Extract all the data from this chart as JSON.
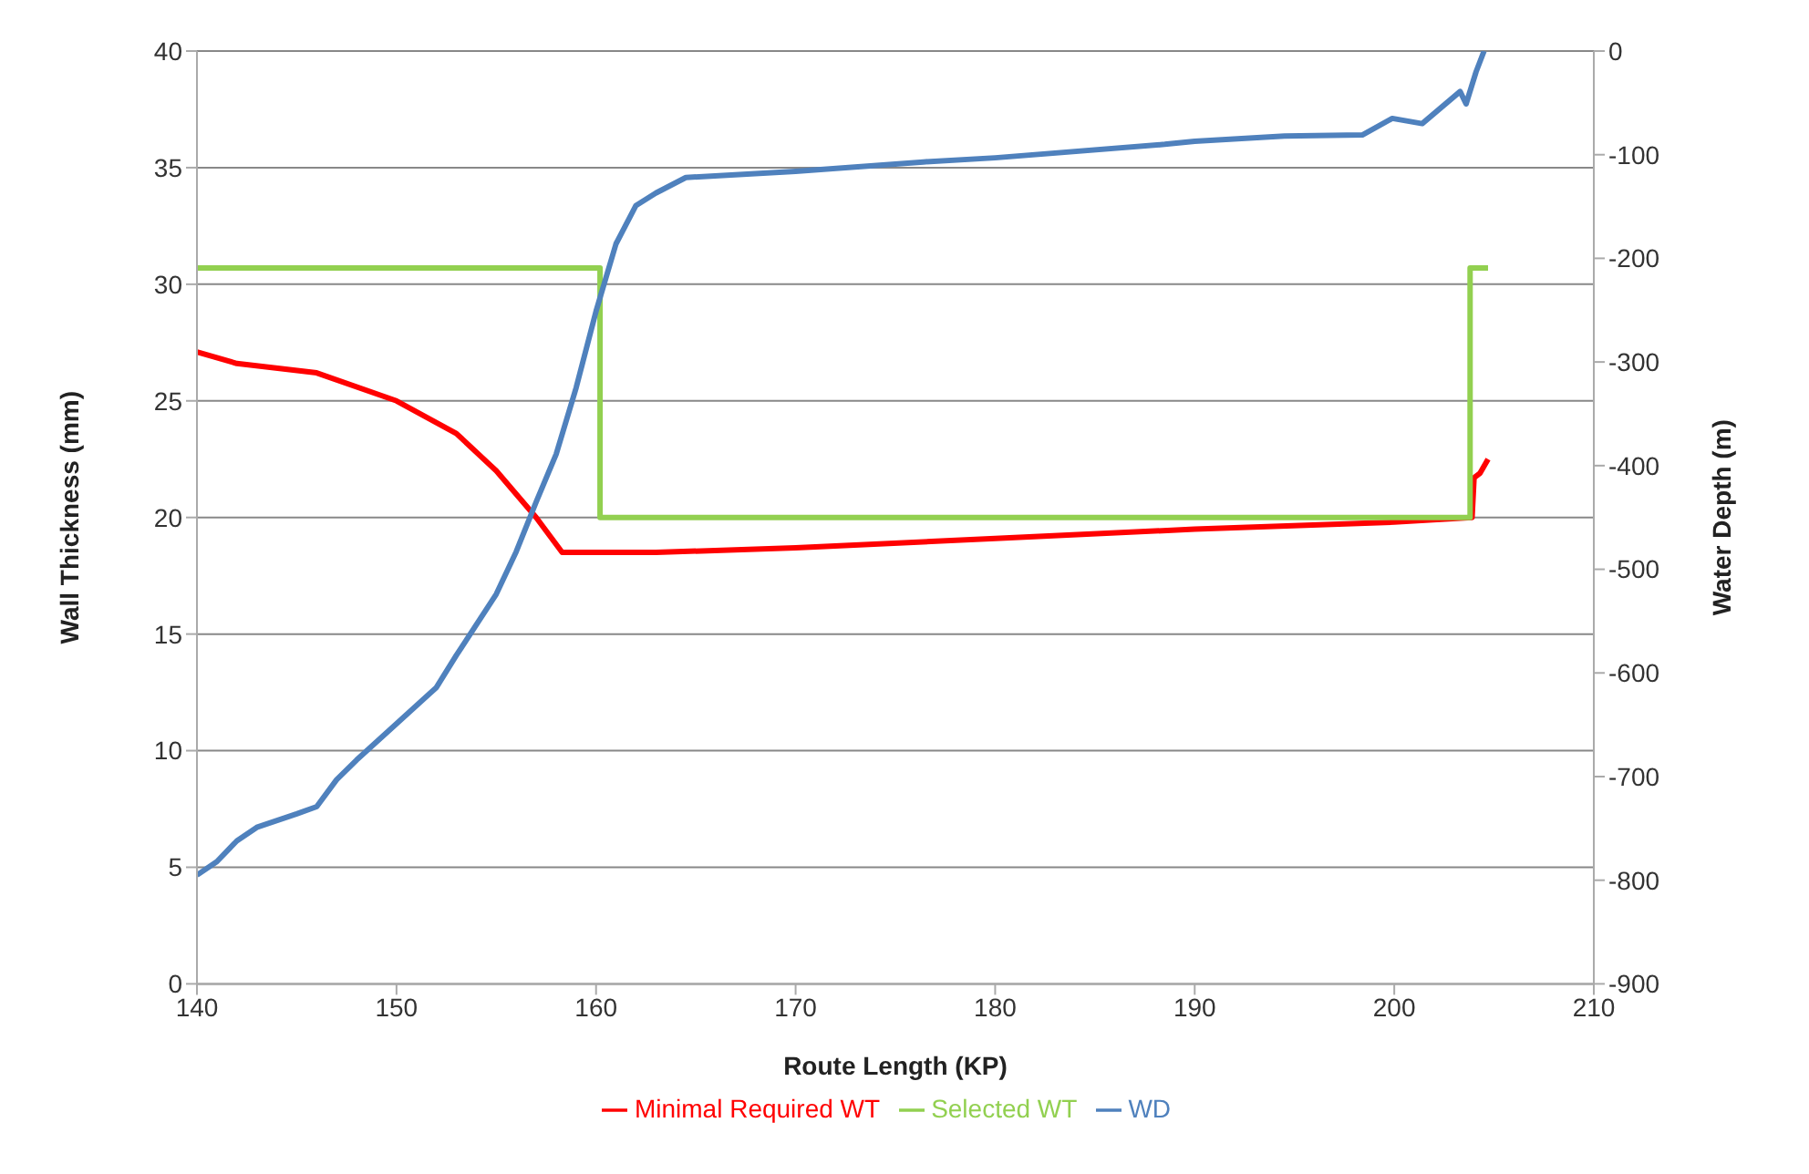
{
  "chart_data": {
    "type": "line",
    "xlabel": "Route Length (KP)",
    "ylabel": "Wall Thickness (mm)",
    "y2label": "Water Depth (m)",
    "xlim": [
      140,
      210
    ],
    "xticks": [
      140,
      150,
      160,
      170,
      180,
      190,
      200,
      210
    ],
    "ylim": [
      0,
      40
    ],
    "yticks": [
      0,
      5,
      10,
      15,
      20,
      25,
      30,
      35,
      40
    ],
    "y2lim": [
      -900,
      0
    ],
    "y2ticks": [
      -900,
      -800,
      -700,
      -600,
      -500,
      -400,
      -300,
      -200,
      -100,
      0
    ],
    "grid": "y",
    "legend": "bottom",
    "marker": "none",
    "line_style": "solid",
    "series": [
      {
        "name": "Minimal Required WT",
        "color": "#ff0000",
        "x": [
          140,
          142,
          146,
          150,
          153,
          155,
          157,
          158.3,
          163,
          170,
          180,
          190,
          200,
          203.9,
          204,
          204.3,
          204.7
        ],
        "values": [
          27.1,
          26.6,
          26.2,
          25.0,
          23.6,
          22,
          20,
          18.5,
          18.5,
          18.7,
          19.1,
          19.5,
          19.8,
          20,
          21.7,
          21.9,
          22.5
        ]
      },
      {
        "name": "Selected WT",
        "color": "#92d050",
        "x": [
          140,
          160.2,
          160.2,
          203.8,
          203.8,
          204.7
        ],
        "values": [
          30.7,
          30.7,
          20,
          20,
          30.7,
          30.7
        ]
      },
      {
        "name": "WD",
        "color": "#4f81bd",
        "axis": "y2",
        "x": [
          140,
          141,
          142,
          143,
          145,
          146,
          147,
          148,
          150,
          152,
          153,
          155,
          156,
          157,
          158,
          159,
          160,
          161,
          162,
          163,
          164.5,
          170,
          176.4,
          180,
          188.5,
          190,
          194.5,
          198.4,
          199.9,
          201.4,
          203.3,
          203.6,
          204.1,
          204.5
        ],
        "values": [
          -795,
          -782,
          -762,
          -749,
          -736,
          -729,
          -703,
          -684,
          -649,
          -614,
          -583,
          -524,
          -483,
          -435,
          -389,
          -325,
          -251,
          -186,
          -149,
          -137,
          -122,
          -116,
          -107,
          -103,
          -90,
          -87,
          -82,
          -81,
          -65,
          -70,
          -39,
          -51,
          -20,
          0
        ]
      }
    ]
  }
}
